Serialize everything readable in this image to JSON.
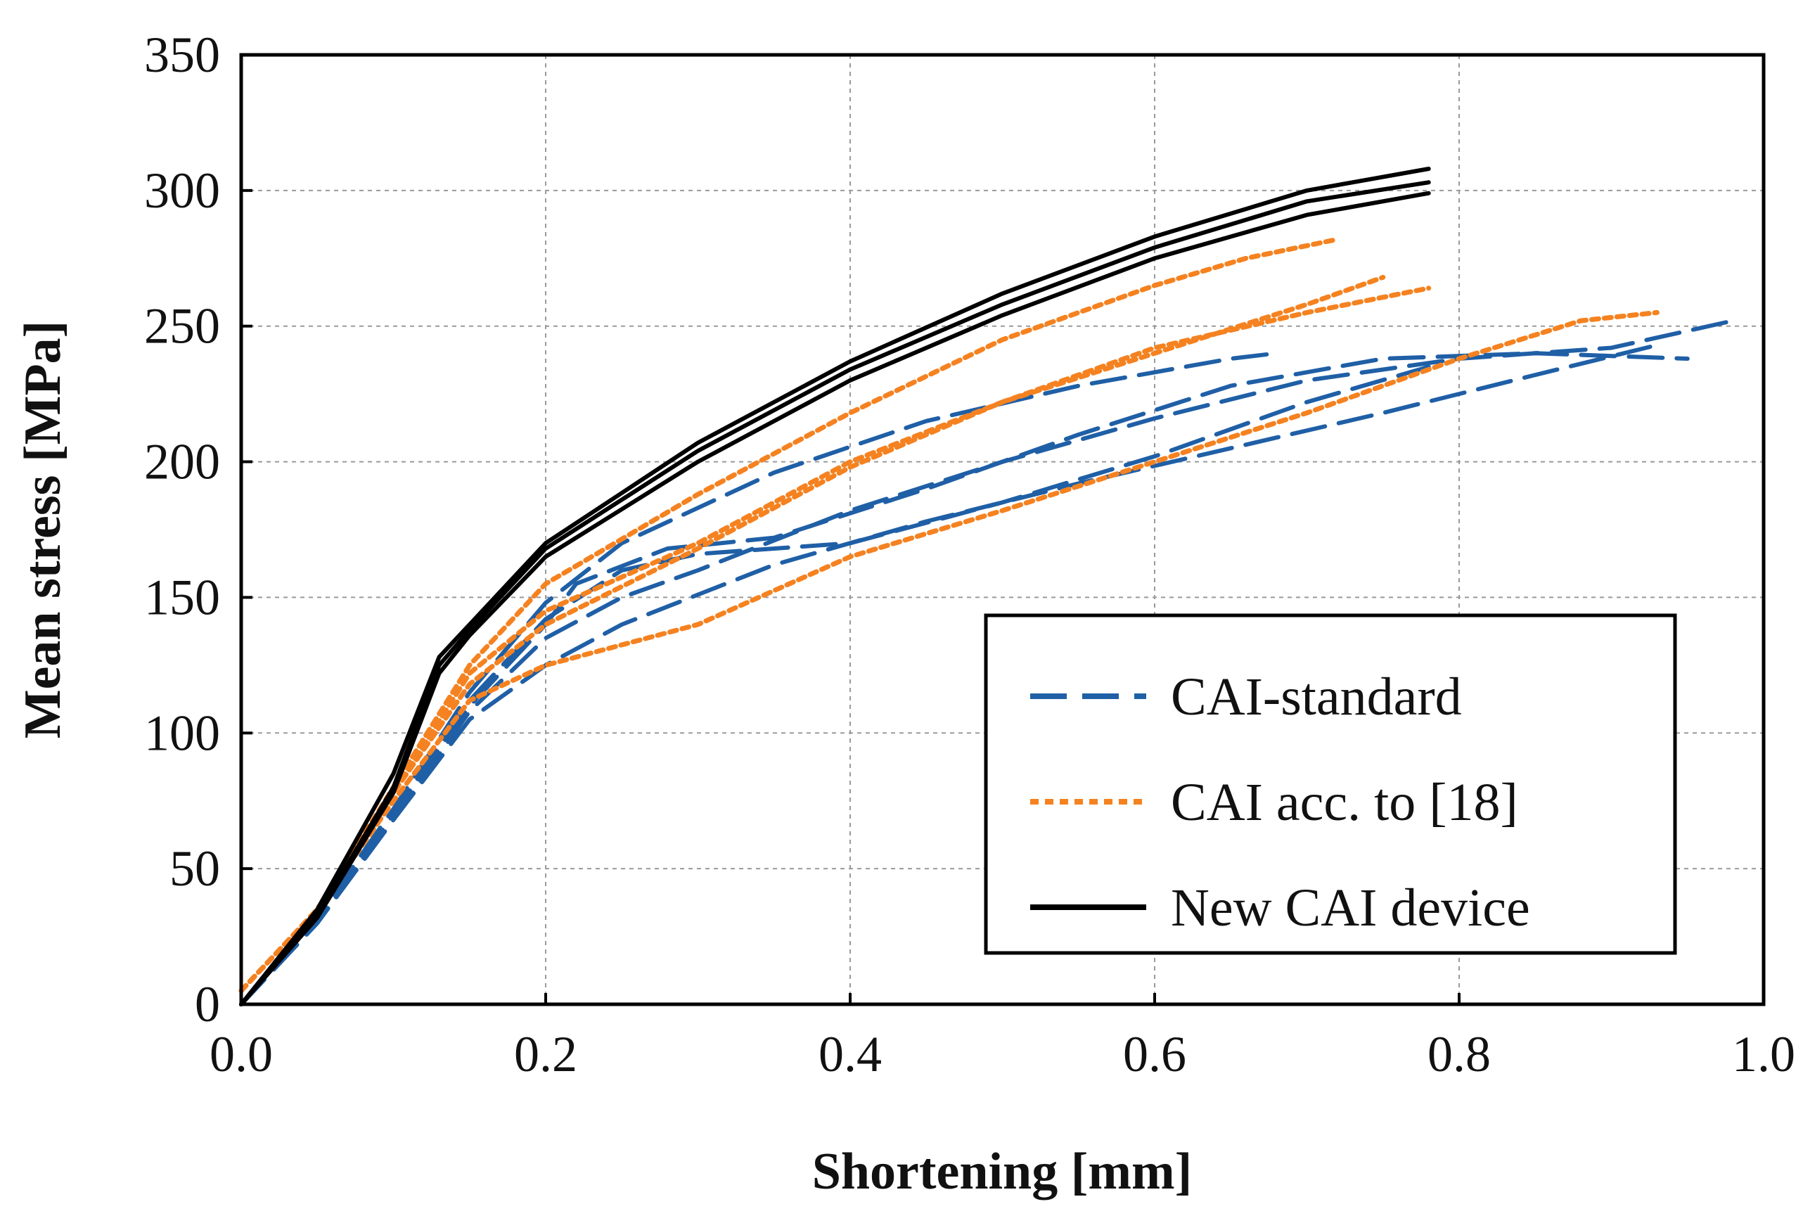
{
  "chart_data": {
    "type": "line",
    "title": "",
    "xlabel": "Shortening [mm]",
    "ylabel": "Mean stress [MPa]",
    "xlim": [
      0,
      1.0
    ],
    "ylim": [
      0,
      350
    ],
    "x_ticks": [
      "0.0",
      "0.2",
      "0.4",
      "0.6",
      "0.8",
      "1.0"
    ],
    "y_ticks": [
      "0",
      "50",
      "100",
      "150",
      "200",
      "250",
      "300",
      "350"
    ],
    "grid": true,
    "legend_position": "lower-right",
    "series": [
      {
        "name": "CAI-standard",
        "group": "CAI-standard",
        "style": "dashed",
        "color": "#1f5fa6",
        "points": [
          [
            0,
            0
          ],
          [
            0.05,
            30
          ],
          [
            0.1,
            70
          ],
          [
            0.15,
            110
          ],
          [
            0.2,
            140
          ],
          [
            0.22,
            155
          ],
          [
            0.28,
            168
          ],
          [
            0.35,
            172
          ],
          [
            0.45,
            190
          ],
          [
            0.55,
            210
          ],
          [
            0.65,
            228
          ],
          [
            0.75,
            238
          ],
          [
            0.85,
            240
          ],
          [
            0.95,
            238
          ]
        ]
      },
      {
        "name": "CAI-standard",
        "group": "CAI-standard",
        "style": "dashed",
        "color": "#1f5fa6",
        "points": [
          [
            0,
            0
          ],
          [
            0.05,
            32
          ],
          [
            0.1,
            72
          ],
          [
            0.15,
            115
          ],
          [
            0.2,
            148
          ],
          [
            0.25,
            170
          ],
          [
            0.35,
            196
          ],
          [
            0.45,
            215
          ],
          [
            0.55,
            228
          ],
          [
            0.65,
            238
          ],
          [
            0.68,
            240
          ]
        ]
      },
      {
        "name": "CAI-standard",
        "group": "CAI-standard",
        "style": "dashed",
        "color": "#1f5fa6",
        "points": [
          [
            0,
            0
          ],
          [
            0.05,
            30
          ],
          [
            0.1,
            68
          ],
          [
            0.15,
            108
          ],
          [
            0.2,
            135
          ],
          [
            0.25,
            150
          ],
          [
            0.3,
            160
          ],
          [
            0.4,
            182
          ],
          [
            0.5,
            200
          ],
          [
            0.6,
            216
          ],
          [
            0.7,
            230
          ],
          [
            0.8,
            238
          ],
          [
            0.9,
            242
          ],
          [
            0.98,
            252
          ]
        ]
      },
      {
        "name": "CAI-standard",
        "group": "CAI-standard",
        "style": "dashed",
        "color": "#1f5fa6",
        "points": [
          [
            0,
            0
          ],
          [
            0.05,
            30
          ],
          [
            0.1,
            68
          ],
          [
            0.15,
            105
          ],
          [
            0.2,
            125
          ],
          [
            0.25,
            140
          ],
          [
            0.35,
            162
          ],
          [
            0.45,
            178
          ],
          [
            0.55,
            192
          ],
          [
            0.65,
            205
          ],
          [
            0.75,
            218
          ],
          [
            0.85,
            232
          ],
          [
            0.93,
            243
          ]
        ]
      },
      {
        "name": "CAI-standard",
        "group": "CAI-standard",
        "style": "dashed",
        "color": "#1f5fa6",
        "points": [
          [
            0,
            0
          ],
          [
            0.05,
            30
          ],
          [
            0.1,
            70
          ],
          [
            0.15,
            112
          ],
          [
            0.2,
            142
          ],
          [
            0.25,
            160
          ],
          [
            0.3,
            166
          ],
          [
            0.4,
            170
          ],
          [
            0.5,
            185
          ],
          [
            0.6,
            202
          ],
          [
            0.7,
            222
          ],
          [
            0.78,
            235
          ]
        ]
      },
      {
        "name": "CAI acc. to [18]",
        "group": "CAI acc. to [18]",
        "style": "dotted",
        "color": "#f58220",
        "points": [
          [
            0,
            5
          ],
          [
            0.05,
            35
          ],
          [
            0.1,
            80
          ],
          [
            0.15,
            125
          ],
          [
            0.2,
            155
          ],
          [
            0.3,
            188
          ],
          [
            0.4,
            218
          ],
          [
            0.5,
            245
          ],
          [
            0.6,
            265
          ],
          [
            0.66,
            275
          ],
          [
            0.72,
            282
          ]
        ]
      },
      {
        "name": "CAI acc. to [18]",
        "group": "CAI acc. to [18]",
        "style": "dotted",
        "color": "#f58220",
        "points": [
          [
            0,
            5
          ],
          [
            0.05,
            35
          ],
          [
            0.1,
            78
          ],
          [
            0.15,
            122
          ],
          [
            0.2,
            145
          ],
          [
            0.3,
            170
          ],
          [
            0.4,
            200
          ],
          [
            0.5,
            222
          ],
          [
            0.6,
            240
          ],
          [
            0.7,
            258
          ],
          [
            0.75,
            268
          ]
        ]
      },
      {
        "name": "CAI acc. to [18]",
        "group": "CAI acc. to [18]",
        "style": "dotted",
        "color": "#f58220",
        "points": [
          [
            0,
            5
          ],
          [
            0.05,
            35
          ],
          [
            0.1,
            78
          ],
          [
            0.15,
            118
          ],
          [
            0.2,
            140
          ],
          [
            0.3,
            168
          ],
          [
            0.4,
            198
          ],
          [
            0.5,
            222
          ],
          [
            0.6,
            242
          ],
          [
            0.7,
            255
          ],
          [
            0.78,
            264
          ]
        ]
      },
      {
        "name": "CAI acc. to [18]",
        "group": "CAI acc. to [18]",
        "style": "dotted",
        "color": "#f58220",
        "points": [
          [
            0,
            5
          ],
          [
            0.05,
            35
          ],
          [
            0.1,
            75
          ],
          [
            0.15,
            112
          ],
          [
            0.2,
            125
          ],
          [
            0.3,
            140
          ],
          [
            0.4,
            165
          ],
          [
            0.5,
            182
          ],
          [
            0.6,
            200
          ],
          [
            0.7,
            218
          ],
          [
            0.8,
            238
          ],
          [
            0.88,
            252
          ],
          [
            0.93,
            255
          ]
        ]
      },
      {
        "name": "New CAI device",
        "group": "New CAI device",
        "style": "solid",
        "color": "#000000",
        "points": [
          [
            0,
            0
          ],
          [
            0.05,
            35
          ],
          [
            0.1,
            85
          ],
          [
            0.13,
            128
          ],
          [
            0.15,
            140
          ],
          [
            0.2,
            170
          ],
          [
            0.3,
            207
          ],
          [
            0.4,
            237
          ],
          [
            0.5,
            262
          ],
          [
            0.6,
            283
          ],
          [
            0.7,
            300
          ],
          [
            0.78,
            308
          ]
        ]
      },
      {
        "name": "New CAI device",
        "group": "New CAI device",
        "style": "solid",
        "color": "#000000",
        "points": [
          [
            0,
            0
          ],
          [
            0.05,
            33
          ],
          [
            0.1,
            80
          ],
          [
            0.13,
            125
          ],
          [
            0.15,
            138
          ],
          [
            0.2,
            168
          ],
          [
            0.3,
            204
          ],
          [
            0.4,
            234
          ],
          [
            0.5,
            258
          ],
          [
            0.6,
            279
          ],
          [
            0.7,
            296
          ],
          [
            0.78,
            303
          ]
        ]
      },
      {
        "name": "New CAI device",
        "group": "New CAI device",
        "style": "solid",
        "color": "#000000",
        "points": [
          [
            0,
            0
          ],
          [
            0.05,
            32
          ],
          [
            0.1,
            78
          ],
          [
            0.13,
            122
          ],
          [
            0.15,
            136
          ],
          [
            0.2,
            165
          ],
          [
            0.3,
            200
          ],
          [
            0.4,
            230
          ],
          [
            0.5,
            254
          ],
          [
            0.6,
            275
          ],
          [
            0.7,
            291
          ],
          [
            0.78,
            299
          ]
        ]
      }
    ],
    "legend": [
      {
        "label": "CAI-standard",
        "style": "dashed",
        "color": "#1f5fa6"
      },
      {
        "label": "CAI acc. to [18]",
        "style": "dotted",
        "color": "#f58220"
      },
      {
        "label": "New CAI device",
        "style": "solid",
        "color": "#000000"
      }
    ]
  }
}
